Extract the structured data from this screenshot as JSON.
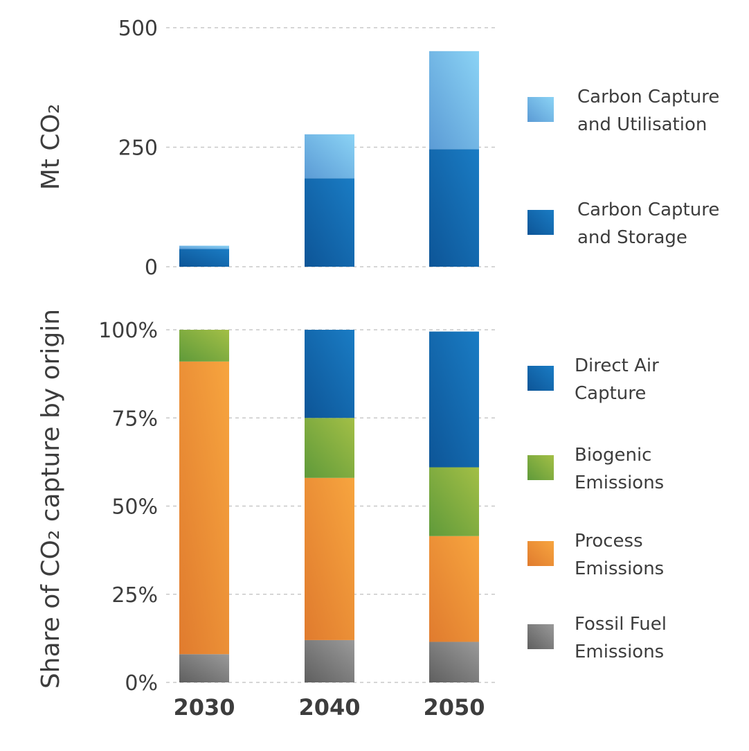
{
  "colors": {
    "ccu": [
      "#5b9bd5",
      "#8bd3f5"
    ],
    "ccs": [
      "#0d5597",
      "#1a7cc4"
    ],
    "dac": [
      "#0d5597",
      "#1a7cc4"
    ],
    "biogenic": [
      "#5f9a3a",
      "#a3bf46"
    ],
    "process": [
      "#e07b2e",
      "#f7a53f"
    ],
    "fossil": [
      "#5f5f5f",
      "#9a9a9a"
    ]
  },
  "chart_data": [
    {
      "type": "bar",
      "stacked": true,
      "categories": [
        "2030",
        "2040",
        "2050"
      ],
      "ylabel": "Mt CO₂",
      "ylim": [
        0,
        500
      ],
      "yticks": [
        "0",
        "250",
        "500"
      ],
      "grid": true,
      "legend_position": "right",
      "series": [
        {
          "key": "ccs",
          "name": "Carbon Capture and Storage",
          "legend_lines": [
            "Carbon Capture",
            "and Storage"
          ],
          "values": [
            37,
            185,
            246
          ]
        },
        {
          "key": "ccu",
          "name": "Carbon Capture and Utilisation",
          "legend_lines": [
            "Carbon Capture",
            "and Utilisation"
          ],
          "values": [
            7,
            92,
            205
          ]
        }
      ]
    },
    {
      "type": "bar",
      "stacked": true,
      "categories": [
        "2030",
        "2040",
        "2050"
      ],
      "ylabel": "Share of CO₂ capture by origin",
      "ylim": [
        0,
        100
      ],
      "yticks": [
        "0%",
        "25%",
        "50%",
        "75%",
        "100%"
      ],
      "grid": true,
      "legend_position": "right",
      "series": [
        {
          "key": "fossil",
          "name": "Fossil Fuel Emissions",
          "legend_lines": [
            "Fossil Fuel",
            "Emissions"
          ],
          "values": [
            8,
            12,
            11.5
          ]
        },
        {
          "key": "process",
          "name": "Process Emissions",
          "legend_lines": [
            "Process",
            "Emissions"
          ],
          "values": [
            83,
            46,
            30
          ]
        },
        {
          "key": "biogenic",
          "name": "Biogenic Emissions",
          "legend_lines": [
            "Biogenic",
            "Emissions"
          ],
          "values": [
            9,
            17,
            19.5
          ]
        },
        {
          "key": "dac",
          "name": "Direct Air Capture",
          "legend_lines": [
            "Direct Air",
            "Capture"
          ],
          "values": [
            0,
            25,
            38.5
          ]
        }
      ]
    }
  ]
}
